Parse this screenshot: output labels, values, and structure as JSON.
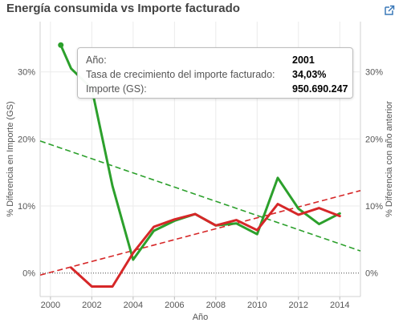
{
  "title": "Energía consumida vs Importe facturado",
  "external_link_icon": "external-link-icon",
  "tooltip": {
    "rows": [
      {
        "label": "Año:",
        "value": "2001"
      },
      {
        "label": "Tasa de crecimiento del importe facturado:",
        "value": "34,03%"
      },
      {
        "label": "Importe (GS):",
        "value": "950.690.247"
      }
    ]
  },
  "chart_data": {
    "type": "line",
    "xlabel": "Año",
    "ylabel_left": "% Diferencia en Importe (GS)",
    "ylabel_right": "% Diferencia con año anterior",
    "xlim": [
      1999.5,
      2015
    ],
    "ylim": [
      -3.5,
      37.5
    ],
    "x_ticks": [
      2000,
      2002,
      2004,
      2006,
      2008,
      2010,
      2012,
      2014
    ],
    "y_ticks": [
      0,
      10,
      20,
      30
    ],
    "y_tick_labels": [
      "0%",
      "10%",
      "20%",
      "30%"
    ],
    "zero_line": "dotted",
    "series": [
      {
        "color": "#2ca02c",
        "points": [
          [
            2000.5,
            34.0
          ],
          [
            2001,
            30.5
          ],
          [
            2002,
            27.5
          ],
          [
            2003,
            13
          ],
          [
            2004,
            2
          ],
          [
            2005,
            6.3
          ],
          [
            2006,
            7.8
          ],
          [
            2007,
            8.8
          ],
          [
            2008,
            7.1
          ],
          [
            2009,
            7.4
          ],
          [
            2010,
            5.8
          ],
          [
            2011,
            14.2
          ],
          [
            2012,
            9.6
          ],
          [
            2013,
            7.3
          ],
          [
            2014,
            8.9
          ]
        ]
      },
      {
        "color": "#d62728",
        "points": [
          [
            2001,
            0.8
          ],
          [
            2002,
            -2.0
          ],
          [
            2003,
            -2.0
          ],
          [
            2004,
            3.0
          ],
          [
            2005,
            6.9
          ],
          [
            2006,
            8.0
          ],
          [
            2007,
            8.8
          ],
          [
            2008,
            7.1
          ],
          [
            2009,
            7.9
          ],
          [
            2010,
            6.4
          ],
          [
            2011,
            10.3
          ],
          [
            2012,
            8.7
          ],
          [
            2013,
            9.7
          ],
          [
            2014,
            8.5
          ]
        ]
      }
    ],
    "trendlines": [
      {
        "color": "#2ca02c",
        "points": [
          [
            1999.5,
            19.7
          ],
          [
            2015,
            3.3
          ]
        ]
      },
      {
        "color": "#d62728",
        "points": [
          [
            1999.5,
            -0.3
          ],
          [
            2015,
            12.3
          ]
        ]
      }
    ]
  }
}
